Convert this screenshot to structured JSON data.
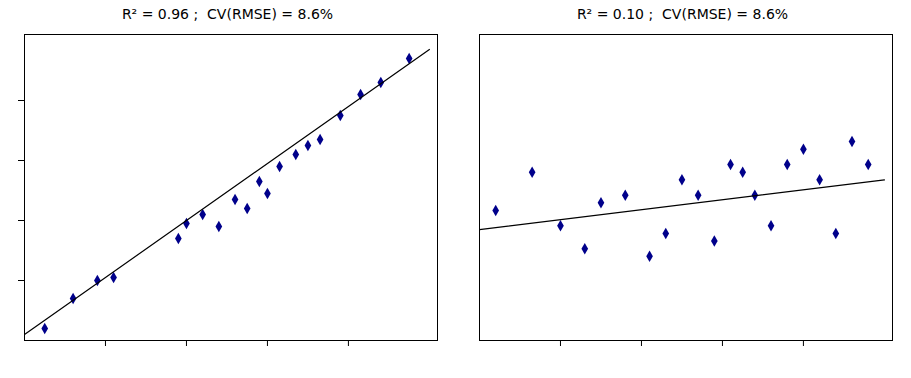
{
  "chart_data": [
    {
      "type": "scatter",
      "title": "R² = 0.96 ;  CV(RMSE) = 8.6%",
      "series": [
        {
          "type": "scatter",
          "x": [
            0.05,
            0.12,
            0.18,
            0.22,
            0.38,
            0.4,
            0.44,
            0.48,
            0.52,
            0.55,
            0.58,
            0.6,
            0.63,
            0.67,
            0.7,
            0.73,
            0.78,
            0.83,
            0.88,
            0.95
          ],
          "values": [
            0.04,
            0.14,
            0.2,
            0.21,
            0.34,
            0.39,
            0.42,
            0.38,
            0.47,
            0.44,
            0.53,
            0.49,
            0.58,
            0.62,
            0.65,
            0.67,
            0.75,
            0.82,
            0.86,
            0.94
          ],
          "color": "#00008B",
          "marker": "diamond"
        },
        {
          "type": "line",
          "x": [
            0.0,
            1.0
          ],
          "values": [
            0.02,
            0.97
          ],
          "color": "#000000"
        }
      ],
      "xlim": [
        0.0,
        1.02
      ],
      "ylim": [
        0.0,
        1.02
      ],
      "xticks": [
        0.2,
        0.4,
        0.6,
        0.8
      ],
      "yticks": [
        0.2,
        0.4,
        0.6,
        0.8
      ],
      "tick_labels": false
    },
    {
      "type": "scatter",
      "title": "R² = 0.10 ;  CV(RMSE) = 8.6%",
      "series": [
        {
          "type": "scatter",
          "x": [
            0.04,
            0.13,
            0.2,
            0.26,
            0.3,
            0.36,
            0.42,
            0.46,
            0.5,
            0.54,
            0.58,
            0.62,
            0.65,
            0.68,
            0.72,
            0.76,
            0.8,
            0.84,
            0.88,
            0.92,
            0.96
          ],
          "values": [
            0.52,
            0.57,
            0.5,
            0.47,
            0.53,
            0.54,
            0.46,
            0.49,
            0.56,
            0.54,
            0.48,
            0.58,
            0.57,
            0.54,
            0.5,
            0.58,
            0.6,
            0.56,
            0.49,
            0.61,
            0.58
          ],
          "color": "#00008B",
          "marker": "diamond"
        },
        {
          "type": "line",
          "x": [
            0.0,
            1.0
          ],
          "values": [
            0.495,
            0.56
          ],
          "color": "#000000"
        }
      ],
      "xlim": [
        0.0,
        1.02
      ],
      "ylim": [
        0.35,
        0.75
      ],
      "xticks": [
        0.2,
        0.4,
        0.6,
        0.8
      ],
      "yticks": [],
      "tick_labels": false
    }
  ]
}
